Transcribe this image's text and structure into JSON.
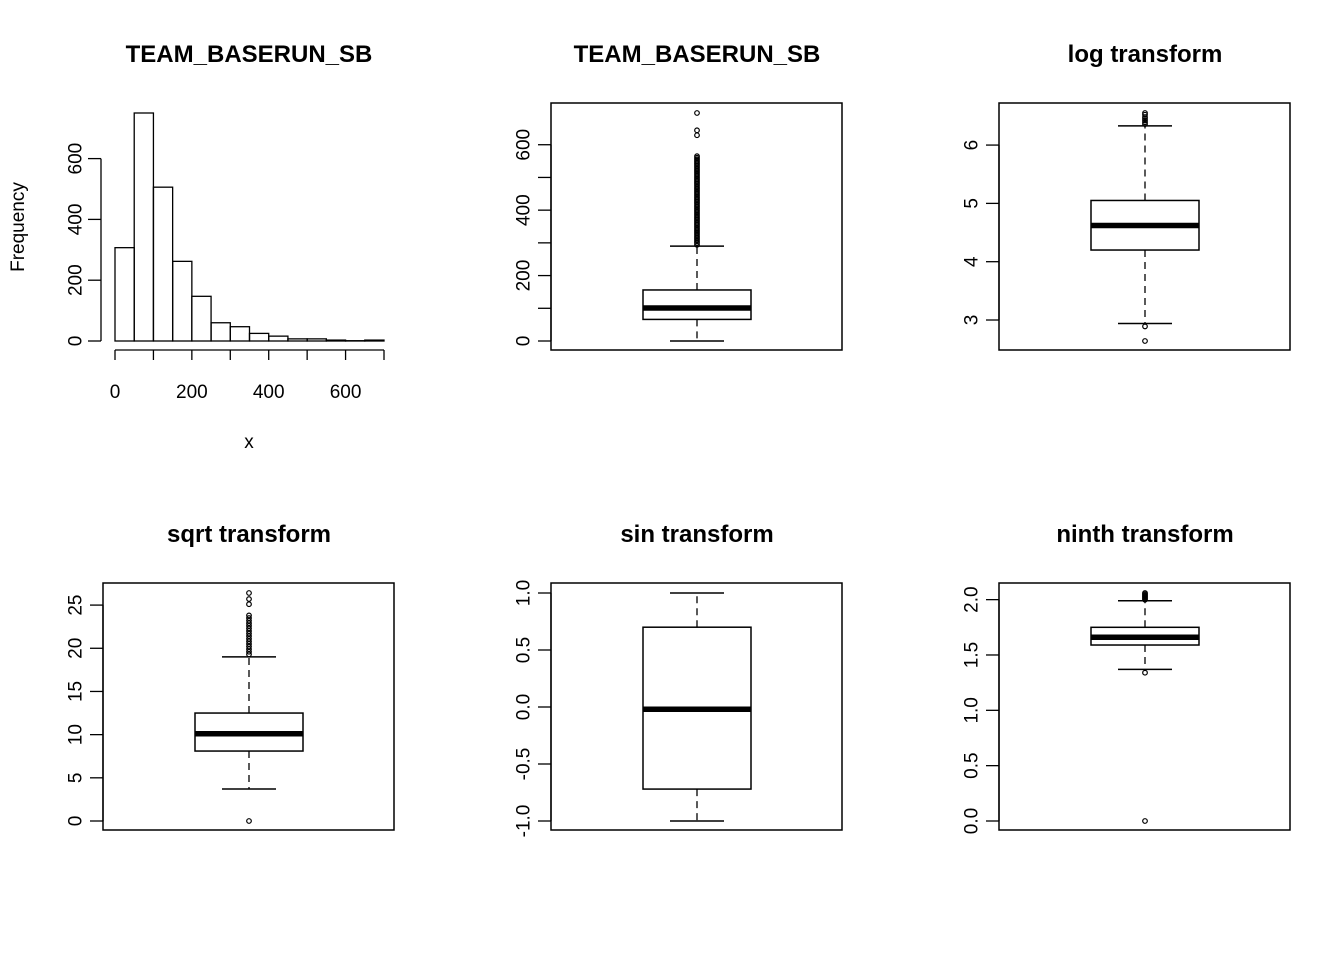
{
  "chart_data": [
    {
      "type": "histogram",
      "title": "TEAM_BASERUN_SB",
      "xlabel": "x",
      "ylabel": "Frequency",
      "bin_width": 50,
      "bins": [
        {
          "x0": 0,
          "x1": 50,
          "count": 307
        },
        {
          "x0": 50,
          "x1": 100,
          "count": 750
        },
        {
          "x0": 100,
          "x1": 150,
          "count": 506
        },
        {
          "x0": 150,
          "x1": 200,
          "count": 262
        },
        {
          "x0": 200,
          "x1": 250,
          "count": 147
        },
        {
          "x0": 250,
          "x1": 300,
          "count": 60
        },
        {
          "x0": 300,
          "x1": 350,
          "count": 47
        },
        {
          "x0": 350,
          "x1": 400,
          "count": 25
        },
        {
          "x0": 400,
          "x1": 450,
          "count": 16
        },
        {
          "x0": 450,
          "x1": 500,
          "count": 7
        },
        {
          "x0": 500,
          "x1": 550,
          "count": 7
        },
        {
          "x0": 550,
          "x1": 600,
          "count": 3
        },
        {
          "x0": 600,
          "x1": 650,
          "count": 1
        },
        {
          "x0": 650,
          "x1": 700,
          "count": 3
        }
      ],
      "xlim": [
        0,
        700
      ],
      "ylim": [
        0,
        750
      ],
      "x_ticks": [
        0,
        200,
        400,
        600
      ],
      "x_ticks_minor": [
        100,
        300,
        500,
        700
      ],
      "y_ticks": [
        0,
        200,
        400,
        600
      ],
      "y_ticks_minor": [],
      "x_tick_labels": [
        "0",
        "200",
        "400",
        "600"
      ],
      "y_tick_labels": [
        "0",
        "200",
        "400",
        "600"
      ]
    },
    {
      "type": "boxplot",
      "title": "TEAM_BASERUN_SB",
      "ylim": [
        0,
        697
      ],
      "stats": {
        "lower_whisker": 0,
        "q1": 66,
        "median": 101,
        "q3": 156,
        "upper_whisker": 290
      },
      "outliers": [
        294,
        300,
        305,
        310,
        315,
        320,
        325,
        330,
        335,
        340,
        345,
        350,
        355,
        360,
        365,
        370,
        375,
        380,
        385,
        390,
        395,
        400,
        405,
        410,
        415,
        420,
        425,
        430,
        435,
        440,
        445,
        450,
        455,
        460,
        465,
        470,
        475,
        480,
        485,
        490,
        495,
        500,
        505,
        510,
        515,
        520,
        525,
        530,
        535,
        540,
        545,
        550,
        555,
        560,
        565,
        629,
        644,
        697
      ],
      "y_ticks": [
        0,
        200,
        400,
        600
      ],
      "y_ticks_minor": [
        100,
        300,
        500
      ],
      "y_tick_labels": [
        "0",
        "200",
        "400",
        "600"
      ]
    },
    {
      "type": "boxplot",
      "title": "log transform",
      "ylim": [
        2.64,
        6.55
      ],
      "stats": {
        "lower_whisker": 2.94,
        "q1": 4.2,
        "median": 4.62,
        "q3": 5.05,
        "upper_whisker": 6.33
      },
      "outliers": [
        2.64,
        2.89,
        6.36,
        6.39,
        6.42,
        6.45,
        6.48,
        6.52,
        6.55
      ],
      "y_ticks": [
        3,
        4,
        5,
        6
      ],
      "y_ticks_minor": [],
      "y_tick_labels": [
        "3",
        "4",
        "5",
        "6"
      ]
    },
    {
      "type": "boxplot",
      "title": "sqrt transform",
      "ylim": [
        0,
        26.4
      ],
      "stats": {
        "lower_whisker": 3.7,
        "q1": 8.1,
        "median": 10.1,
        "q3": 12.5,
        "upper_whisker": 19.0
      },
      "outliers": [
        0,
        19.3,
        19.6,
        19.9,
        20.2,
        20.5,
        20.8,
        21.1,
        21.4,
        21.7,
        22.0,
        22.3,
        22.6,
        22.9,
        23.2,
        23.5,
        23.8,
        25.1,
        25.7,
        26.4
      ],
      "y_ticks": [
        0,
        5,
        10,
        15,
        20,
        25
      ],
      "y_ticks_minor": [],
      "y_tick_labels": [
        "0",
        "5",
        "10",
        "15",
        "20",
        "25"
      ]
    },
    {
      "type": "boxplot",
      "title": "sin transform",
      "ylim": [
        -1,
        1
      ],
      "stats": {
        "lower_whisker": -1.0,
        "q1": -0.72,
        "median": -0.02,
        "q3": 0.7,
        "upper_whisker": 1.0
      },
      "outliers": [],
      "y_ticks": [
        -1.0,
        -0.5,
        0.0,
        0.5,
        1.0
      ],
      "y_ticks_minor": [],
      "y_tick_labels": [
        "-1.0",
        "-0.5",
        "0.0",
        "0.5",
        "1.0"
      ]
    },
    {
      "type": "boxplot",
      "title": "ninth transform",
      "ylim": [
        0,
        2.06
      ],
      "stats": {
        "lower_whisker": 1.37,
        "q1": 1.59,
        "median": 1.66,
        "q3": 1.75,
        "upper_whisker": 1.99
      },
      "outliers": [
        0,
        1.34,
        2.0,
        2.01,
        2.02,
        2.03,
        2.04,
        2.05,
        2.06
      ],
      "y_ticks": [
        0.0,
        0.5,
        1.0,
        1.5,
        2.0
      ],
      "y_ticks_minor": [],
      "y_tick_labels": [
        "0.0",
        "0.5",
        "1.0",
        "1.5",
        "2.0"
      ]
    }
  ]
}
